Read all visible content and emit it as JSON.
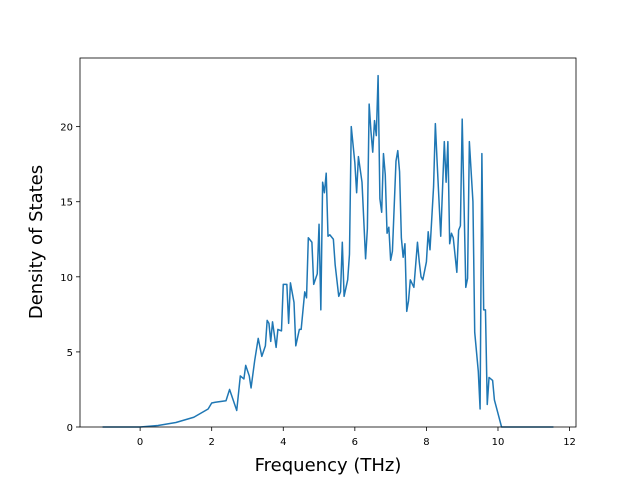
{
  "chart_data": {
    "type": "line",
    "x_label": "Frequency (THz)",
    "y_label": "Density of States",
    "xlim": [
      -1.68,
      12.18
    ],
    "ylim": [
      0,
      24.57
    ],
    "xticks": [
      0,
      2,
      4,
      6,
      8,
      10,
      12
    ],
    "yticks": [
      0,
      5,
      10,
      15,
      20
    ],
    "series": [
      {
        "color": "#1f77b4",
        "x": [
          -1.05,
          0,
          0.5,
          1.0,
          1.5,
          1.9,
          2.0,
          2.1,
          2.4,
          2.5,
          2.6,
          2.7,
          2.8,
          2.9,
          2.95,
          3.05,
          3.1,
          3.2,
          3.3,
          3.4,
          3.5,
          3.55,
          3.6,
          3.65,
          3.7,
          3.8,
          3.85,
          3.95,
          4.0,
          4.1,
          4.15,
          4.2,
          4.3,
          4.35,
          4.45,
          4.5,
          4.6,
          4.65,
          4.7,
          4.8,
          4.85,
          4.95,
          5.0,
          5.05,
          5.1,
          5.15,
          5.2,
          5.25,
          5.3,
          5.4,
          5.45,
          5.55,
          5.6,
          5.65,
          5.7,
          5.8,
          5.85,
          5.9,
          6.0,
          6.05,
          6.1,
          6.2,
          6.3,
          6.35,
          6.4,
          6.45,
          6.5,
          6.55,
          6.6,
          6.65,
          6.7,
          6.75,
          6.8,
          6.85,
          6.9,
          6.95,
          7.0,
          7.05,
          7.15,
          7.2,
          7.25,
          7.3,
          7.35,
          7.4,
          7.45,
          7.5,
          7.55,
          7.65,
          7.75,
          7.8,
          7.85,
          7.9,
          8.0,
          8.05,
          8.1,
          8.2,
          8.25,
          8.3,
          8.4,
          8.5,
          8.55,
          8.6,
          8.65,
          8.7,
          8.75,
          8.85,
          8.9,
          8.95,
          9.0,
          9.05,
          9.1,
          9.15,
          9.2,
          9.3,
          9.35,
          9.45,
          9.5,
          9.55,
          9.6,
          9.65,
          9.7,
          9.75,
          9.85,
          9.9,
          10.0,
          10.1,
          11.55
        ],
        "values": [
          0,
          0,
          0.1,
          0.3,
          0.65,
          1.2,
          1.6,
          1.65,
          1.75,
          2.5,
          1.8,
          1.1,
          3.4,
          3.2,
          4.1,
          3.4,
          2.6,
          4.4,
          5.9,
          4.7,
          5.4,
          7.1,
          6.9,
          5.7,
          7.0,
          5.3,
          6.5,
          6.4,
          9.5,
          9.5,
          6.9,
          9.6,
          8.3,
          5.4,
          6.5,
          6.5,
          9.0,
          8.6,
          12.6,
          12.3,
          9.5,
          10.2,
          13.5,
          7.8,
          16.3,
          15.6,
          16.9,
          12.7,
          12.8,
          12.5,
          10.8,
          8.7,
          9.0,
          12.3,
          8.7,
          9.8,
          11.5,
          20.0,
          17.6,
          15.6,
          18.0,
          16.3,
          11.2,
          13.2,
          21.5,
          19.7,
          18.3,
          20.4,
          19.4,
          23.4,
          15.2,
          14.3,
          18.2,
          16.8,
          12.9,
          13.3,
          11.1,
          11.7,
          17.7,
          18.4,
          17.0,
          12.6,
          11.3,
          12.2,
          7.7,
          8.4,
          9.8,
          9.3,
          12.3,
          11.0,
          10.0,
          9.8,
          11.0,
          13.0,
          11.8,
          16.0,
          20.2,
          17.6,
          12.7,
          19.0,
          16.3,
          19.0,
          12.2,
          12.9,
          12.6,
          10.3,
          13.1,
          13.4,
          20.5,
          15.0,
          9.3,
          9.9,
          19.0,
          15.0,
          6.3,
          3.7,
          1.2,
          18.2,
          7.8,
          7.8,
          1.5,
          3.3,
          3.1,
          1.8,
          0.9,
          0.0,
          0
        ]
      }
    ]
  }
}
